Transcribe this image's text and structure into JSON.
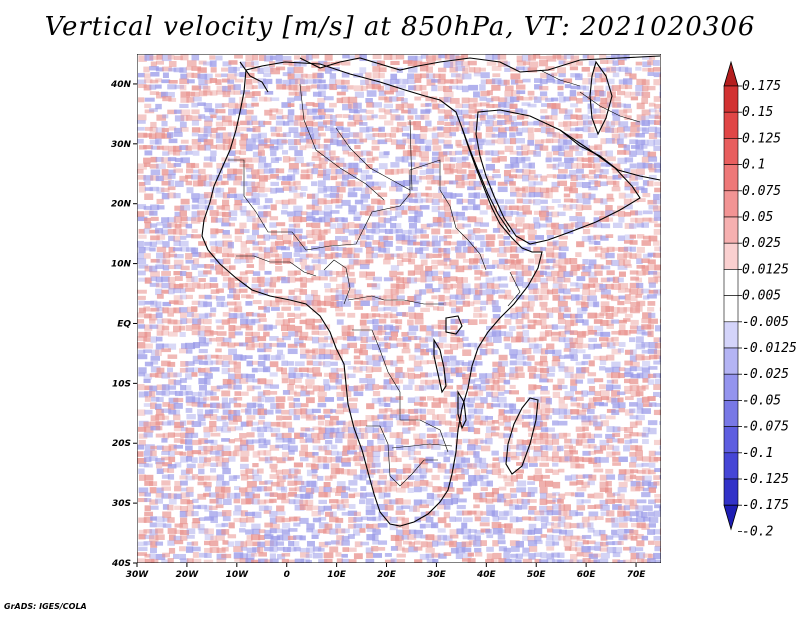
{
  "title": "Vertical velocity [m/s] at 850hPa, VT: 2021020306",
  "credit": "GrADS: IGES/COLA",
  "map": {
    "lat_labels": [
      "40N",
      "30N",
      "20N",
      "10N",
      "EQ",
      "10S",
      "20S",
      "30S",
      "40S"
    ],
    "lon_labels": [
      "30W",
      "20W",
      "10W",
      "0",
      "10E",
      "20E",
      "30E",
      "40E",
      "50E",
      "60E",
      "70E"
    ],
    "lon_range": [
      -30,
      75
    ],
    "lat_range": [
      -40,
      45
    ],
    "field_colors": {
      "positive": "#e8908c",
      "negative": "#9a9ae8",
      "neutral": "#ffffff",
      "coastline": "#000000"
    }
  },
  "colorbar": {
    "labels": [
      "0.175",
      "0.15",
      "0.125",
      "0.1",
      "0.075",
      "0.05",
      "0.025",
      "0.0125",
      "0.005",
      "-0.005",
      "-0.0125",
      "-0.025",
      "-0.05",
      "-0.075",
      "-0.1",
      "-0.125",
      "-0.175",
      "-0.2"
    ],
    "colors": [
      "#b41e1e",
      "#d23232",
      "#e04646",
      "#e85e5e",
      "#ee7878",
      "#f29494",
      "#f6b0b0",
      "#fad0d0",
      "#ffffff",
      "#ffffff",
      "#d4d4fa",
      "#b4b4f4",
      "#9494ee",
      "#7878e6",
      "#5e5ee0",
      "#4646d6",
      "#3232c8",
      "#1e1eb4"
    ]
  }
}
